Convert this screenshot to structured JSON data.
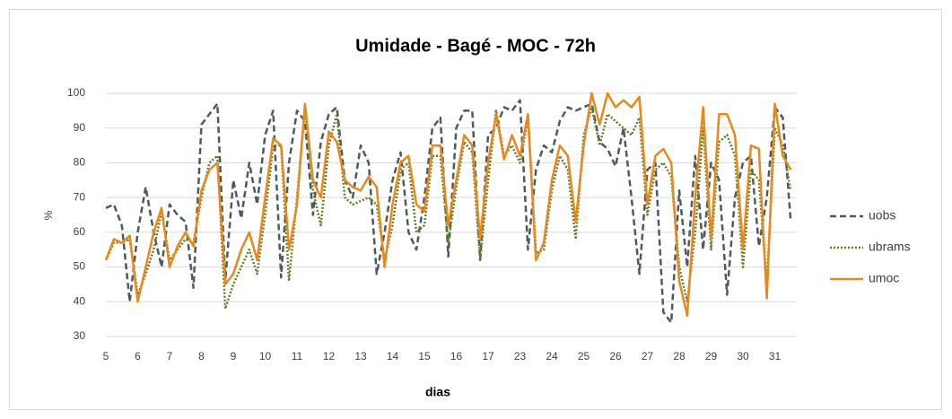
{
  "chart_data": {
    "type": "line",
    "title": "Umidade - Bagé - MOC - 72h",
    "x_label": "dias",
    "y_label": "%",
    "categories": [
      "5",
      null,
      null,
      null,
      "6",
      null,
      null,
      null,
      "7",
      null,
      null,
      null,
      "8",
      null,
      null,
      null,
      "9",
      null,
      null,
      null,
      "10",
      null,
      null,
      null,
      "11",
      null,
      null,
      null,
      "12",
      null,
      null,
      null,
      "13",
      null,
      null,
      null,
      "14",
      null,
      null,
      null,
      "15",
      null,
      null,
      null,
      "16",
      null,
      null,
      null,
      "17",
      null,
      null,
      null,
      "23",
      null,
      null,
      null,
      "24",
      null,
      null,
      null,
      "25",
      null,
      null,
      null,
      "26",
      null,
      null,
      null,
      "27",
      null,
      null,
      null,
      "28",
      null,
      null,
      null,
      "29",
      null,
      null,
      null,
      "30",
      null,
      null,
      null,
      "31",
      null,
      null
    ],
    "series": [
      {
        "name": "uobs",
        "color": "#4d5a5e",
        "dash": "dashed",
        "values": [
          67,
          68,
          62,
          40,
          60,
          73,
          60,
          50,
          68,
          65,
          63,
          44,
          91,
          94,
          97,
          46,
          75,
          64,
          80,
          68,
          88,
          95,
          47,
          80,
          95,
          92,
          65,
          86,
          94,
          96,
          75,
          70,
          85,
          80,
          48,
          60,
          75,
          83,
          60,
          55,
          70,
          90,
          93,
          53,
          90,
          95,
          95,
          52,
          88,
          90,
          96,
          95,
          98,
          55,
          78,
          85,
          83,
          92,
          96,
          95,
          96,
          97,
          86,
          84,
          79,
          90,
          70,
          48,
          78,
          80,
          37,
          34,
          72,
          50,
          82,
          55,
          80,
          75,
          42,
          70,
          80,
          82,
          56,
          70,
          96,
          93,
          63
        ]
      },
      {
        "name": "ubrams",
        "color": "#5f7f2a",
        "dash": "dotted",
        "values": [
          52,
          57,
          57,
          58,
          42,
          48,
          55,
          66,
          52,
          55,
          58,
          57,
          70,
          80,
          82,
          38,
          45,
          50,
          55,
          48,
          65,
          85,
          85,
          46,
          70,
          96,
          72,
          62,
          85,
          94,
          70,
          68,
          69,
          70,
          68,
          52,
          62,
          78,
          80,
          60,
          62,
          82,
          82,
          57,
          73,
          86,
          83,
          52,
          75,
          95,
          82,
          85,
          80,
          93,
          54,
          55,
          72,
          82,
          78,
          58,
          88,
          96,
          85,
          94,
          92,
          90,
          88,
          93,
          65,
          78,
          80,
          76,
          50,
          40,
          60,
          90,
          55,
          86,
          88,
          82,
          50,
          78,
          75,
          45,
          90,
          85,
          72
        ]
      },
      {
        "name": "umoc",
        "color": "#e8891c",
        "dash": "solid",
        "values": [
          52,
          58,
          57,
          59,
          40,
          50,
          60,
          67,
          50,
          56,
          60,
          56,
          72,
          78,
          80,
          45,
          48,
          55,
          60,
          52,
          70,
          87,
          85,
          55,
          68,
          97,
          75,
          70,
          89,
          86,
          75,
          73,
          72,
          76,
          73,
          50,
          68,
          80,
          82,
          68,
          66,
          85,
          85,
          62,
          75,
          88,
          85,
          58,
          80,
          94,
          81,
          88,
          82,
          94,
          52,
          57,
          75,
          85,
          82,
          63,
          85,
          100,
          91,
          100,
          96,
          98,
          96,
          99,
          68,
          82,
          84,
          80,
          46,
          36,
          70,
          96,
          58,
          94,
          94,
          88,
          55,
          85,
          84,
          41,
          97,
          82,
          78
        ]
      }
    ],
    "ylim": [
      30,
      100
    ],
    "yticks": [
      30,
      40,
      50,
      60,
      70,
      80,
      90,
      100
    ],
    "grid": true,
    "legend": "right"
  }
}
